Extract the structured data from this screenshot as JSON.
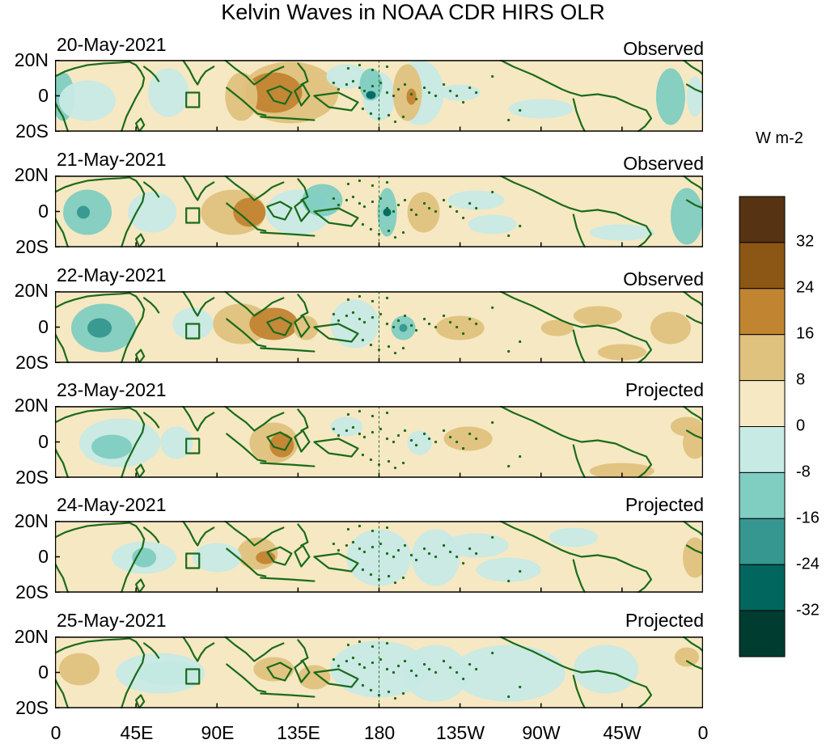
{
  "title": "Kelvin Waves in NOAA CDR HIRS OLR",
  "panels": [
    {
      "date": "20-May-2021",
      "status": "Observed"
    },
    {
      "date": "21-May-2021",
      "status": "Observed"
    },
    {
      "date": "22-May-2021",
      "status": "Observed"
    },
    {
      "date": "23-May-2021",
      "status": "Projected"
    },
    {
      "date": "24-May-2021",
      "status": "Projected"
    },
    {
      "date": "25-May-2021",
      "status": "Projected"
    }
  ],
  "lat_labels": [
    "20N",
    "0",
    "20S"
  ],
  "lon_labels": [
    "0",
    "45E",
    "90E",
    "135E",
    "180",
    "135W",
    "90W",
    "45W",
    "0"
  ],
  "colorbar": {
    "units": "W m-2",
    "labels": [
      "32",
      "24",
      "16",
      "8",
      "0",
      "-8",
      "-16",
      "-24",
      "-32"
    ],
    "colors": [
      "#553313",
      "#8c5614",
      "#c18431",
      "#dfc27d",
      "#f6e8c3",
      "#c7eae5",
      "#80cdc1",
      "#35978f",
      "#01665e",
      "#003c30"
    ]
  },
  "palette": {
    "coast": "#1a6b1a",
    "background": "#f6e8c3"
  }
}
